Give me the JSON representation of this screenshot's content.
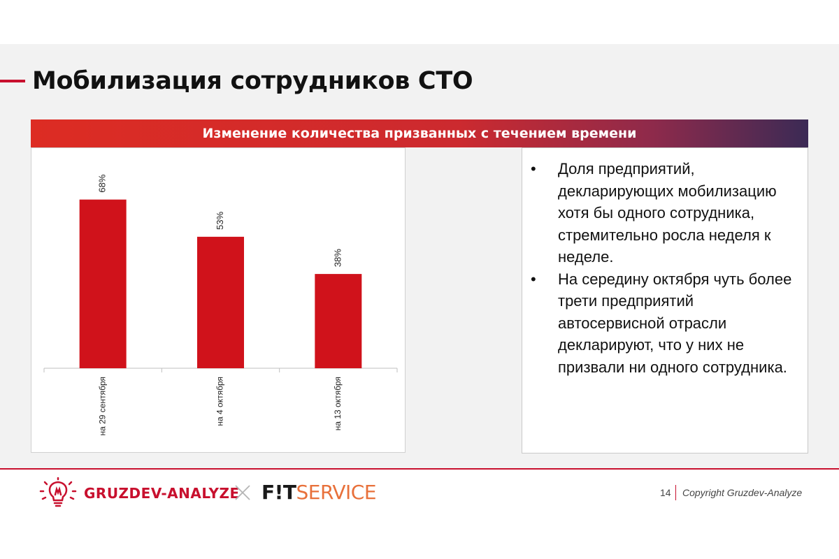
{
  "title": "Мобилизация сотрудников СТО",
  "banner": "Изменение количества призванных с течением времени",
  "chart_data": {
    "type": "bar",
    "categories": [
      "на 29 сентября",
      "на 4 октября",
      "на 13 октября"
    ],
    "values": [
      68,
      53,
      38
    ],
    "value_labels": [
      "68%",
      "53%",
      "38%"
    ],
    "title": "",
    "xlabel": "",
    "ylabel": "",
    "ylim": [
      0,
      100
    ],
    "bar_color": "#d0121b",
    "grid": false,
    "legend": "none"
  },
  "bullets": [
    "Доля предприятий, декларирующих мобилизацию хотя бы одного сотрудника, стремительно росла неделя к неделе.",
    "На середину октября чуть более трети предприятий автосервисной отрасли декларируют, что у них не призвали ни одного сотрудника."
  ],
  "bullet_symbol": "•",
  "footer": {
    "brand1": "GRUZDEV-ANALYZE",
    "brand2_part1": "F!T",
    "brand2_part2": "SERVICE",
    "page_number": "14",
    "copyright": "Copyright Gruzdev-Analyze"
  },
  "colors": {
    "accent": "#c8102e",
    "fit_orange": "#e8703a"
  },
  "icons": [
    "lightbulb-icon",
    "cross-icon"
  ]
}
